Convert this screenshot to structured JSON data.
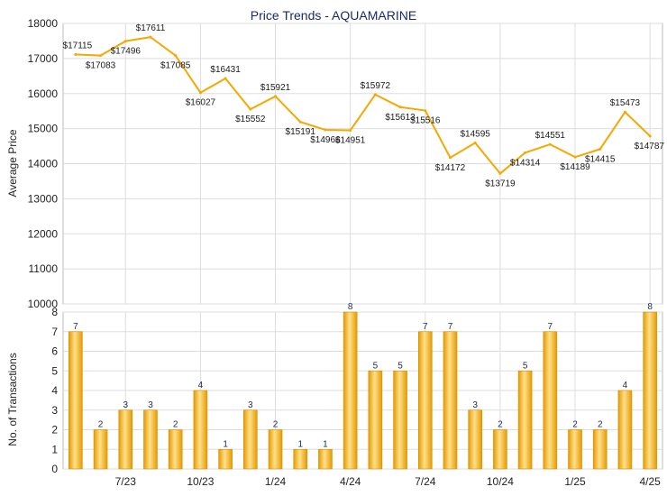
{
  "colors": {
    "line": "#f5a800",
    "bar_light": "#ffe08a",
    "bar_dark": "#e59a00",
    "grid": "#dddddd",
    "title": "#1a2a6a",
    "bar_label": "#1a2a5a"
  },
  "chart_data": [
    {
      "type": "line",
      "title": "Price Trends - AQUAMARINE",
      "ylabel": "Average Price",
      "ylim": [
        10000,
        18000
      ],
      "yticks": [
        "18000",
        "17000",
        "16000",
        "15000",
        "14000",
        "13000",
        "12000",
        "11000",
        "10000"
      ],
      "grid": true,
      "values": [
        17115,
        17083,
        17496,
        17611,
        17085,
        16027,
        16431,
        15552,
        15921,
        15191,
        14966,
        14951,
        15972,
        15613,
        15516,
        14172,
        14595,
        13719,
        14314,
        14551,
        14189,
        14415,
        15473,
        14787
      ],
      "labels": [
        "$17115",
        "$17083",
        "$17496",
        "$17611",
        "$17085",
        "$16027",
        "$16431",
        "$15552",
        "$15921",
        "$15191",
        "$14966",
        "$14951",
        "$15972",
        "$15613",
        "$15516",
        "$14172",
        "$14595",
        "$13719",
        "$14314",
        "$14551",
        "$14189",
        "$14415",
        "$15473",
        "$14787"
      ]
    },
    {
      "type": "bar",
      "ylabel": "No. of Transactions",
      "ylim": [
        0,
        8
      ],
      "yticks": [
        "8",
        "7",
        "6",
        "5",
        "4",
        "3",
        "2",
        "1",
        "0"
      ],
      "grid": true,
      "values": [
        7,
        2,
        3,
        3,
        2,
        4,
        1,
        3,
        2,
        1,
        1,
        8,
        5,
        5,
        7,
        7,
        3,
        2,
        5,
        7,
        2,
        2,
        4,
        8
      ],
      "labels": [
        "7",
        "2",
        "3",
        "3",
        "2",
        "4",
        "1",
        "3",
        "2",
        "1",
        "1",
        "8",
        "5",
        "5",
        "7",
        "7",
        "3",
        "2",
        "5",
        "7",
        "2",
        "2",
        "4",
        "8"
      ],
      "x_tick_labels": [
        {
          "index": 2,
          "label": "7/23"
        },
        {
          "index": 5,
          "label": "10/23"
        },
        {
          "index": 8,
          "label": "1/24"
        },
        {
          "index": 11,
          "label": "4/24"
        },
        {
          "index": 14,
          "label": "7/24"
        },
        {
          "index": 17,
          "label": "10/24"
        },
        {
          "index": 20,
          "label": "1/25"
        },
        {
          "index": 23,
          "label": "4/25"
        }
      ]
    }
  ]
}
